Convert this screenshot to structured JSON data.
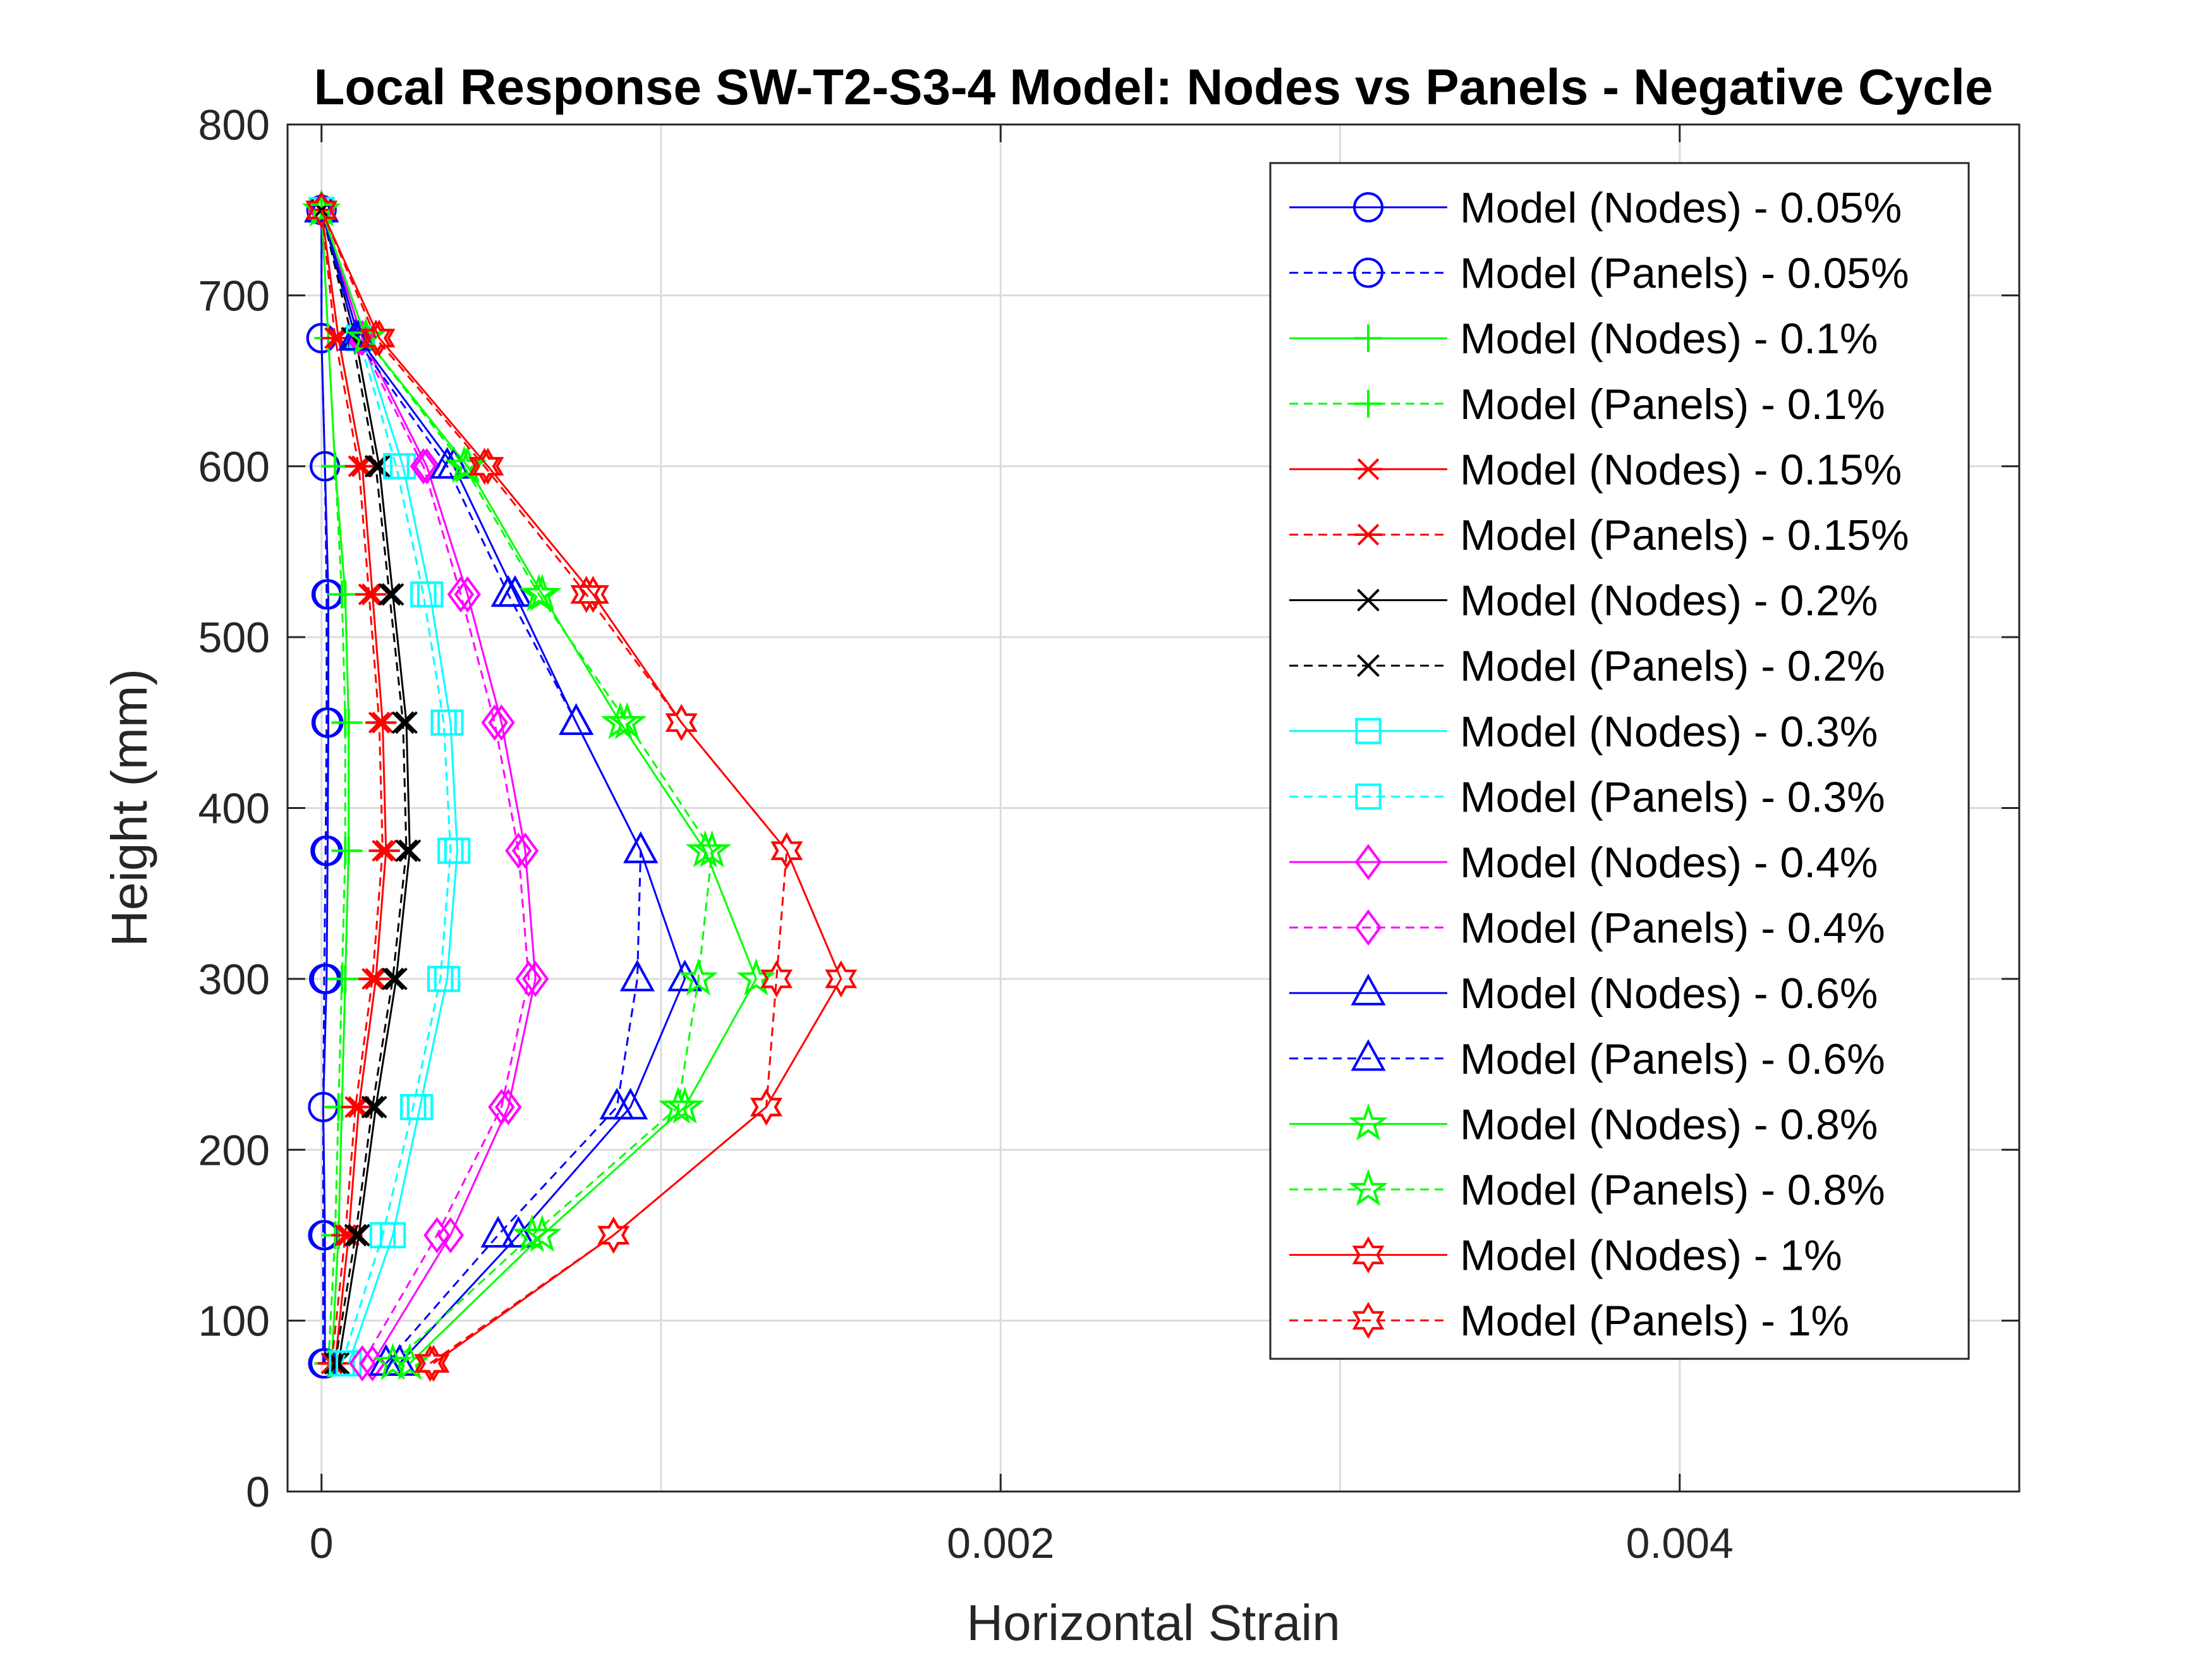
{
  "chart_data": {
    "type": "line",
    "title": "Local Response SW-T2-S3-4 Model: Nodes vs Panels - Negative Cycle",
    "xlabel": "Horizontal Strain",
    "ylabel": "Height (mm)",
    "xlim": [
      -0.0001,
      0.005
    ],
    "ylim": [
      0,
      800
    ],
    "xticks": [
      0,
      0.002,
      0.004
    ],
    "xtick_labels": [
      "0",
      "0.002",
      "0.004"
    ],
    "xgrid": [
      0,
      0.001,
      0.002,
      0.003,
      0.004
    ],
    "yticks": [
      0,
      100,
      200,
      300,
      400,
      500,
      600,
      700,
      800
    ],
    "ytick_labels": [
      "0",
      "100",
      "200",
      "300",
      "400",
      "500",
      "600",
      "700",
      "800"
    ],
    "grid": true,
    "legend_position": "top-right",
    "y": [
      75,
      150,
      225,
      300,
      375,
      450,
      525,
      600,
      675,
      750
    ],
    "series": [
      {
        "name": "Model (Nodes) - 0.05%",
        "color": "#0000ff",
        "line": "solid",
        "marker": "circle",
        "x": [
          1e-05,
          1e-05,
          5e-06,
          1.5e-05,
          1.8e-05,
          2e-05,
          2e-05,
          1e-05,
          0.0,
          0.0
        ]
      },
      {
        "name": "Model (Panels) - 0.05%",
        "color": "#0000ff",
        "line": "dashed",
        "marker": "circle",
        "x": [
          5e-06,
          5e-06,
          5e-06,
          8e-06,
          1.2e-05,
          1.5e-05,
          1.5e-05,
          1e-05,
          0.0,
          0.0
        ]
      },
      {
        "name": "Model (Nodes) - 0.1%",
        "color": "#00ff00",
        "line": "solid",
        "marker": "plus",
        "x": [
          3e-05,
          5e-05,
          6e-05,
          7e-05,
          8e-05,
          8e-05,
          7e-05,
          4e-05,
          2e-05,
          0.0
        ]
      },
      {
        "name": "Model (Panels) - 0.1%",
        "color": "#00ff00",
        "line": "dashed",
        "marker": "plus",
        "x": [
          2e-05,
          4e-05,
          5e-05,
          6e-05,
          7e-05,
          7e-05,
          6e-05,
          4e-05,
          2e-05,
          0.0
        ]
      },
      {
        "name": "Model (Nodes) - 0.15%",
        "color": "#ff0000",
        "line": "solid",
        "marker": "asterisk",
        "x": [
          4e-05,
          8e-05,
          0.00011,
          0.00016,
          0.00019,
          0.00018,
          0.00015,
          0.00012,
          5e-05,
          0.0
        ]
      },
      {
        "name": "Model (Panels) - 0.15%",
        "color": "#ff0000",
        "line": "dashed",
        "marker": "asterisk",
        "x": [
          3e-05,
          7e-05,
          0.0001,
          0.00015,
          0.00018,
          0.00017,
          0.00014,
          0.00011,
          4e-05,
          0.0
        ]
      },
      {
        "name": "Model (Nodes) - 0.2%",
        "color": "#000000",
        "line": "solid",
        "marker": "cross",
        "x": [
          5e-05,
          0.00011,
          0.00016,
          0.00022,
          0.00026,
          0.00025,
          0.00021,
          0.00017,
          0.0001,
          0.0
        ]
      },
      {
        "name": "Model (Panels) - 0.2%",
        "color": "#000000",
        "line": "dashed",
        "marker": "cross",
        "x": [
          4e-05,
          0.0001,
          0.00015,
          0.00021,
          0.00025,
          0.00024,
          0.0002,
          0.00016,
          9e-05,
          0.0
        ]
      },
      {
        "name": "Model (Nodes) - 0.3%",
        "color": "#00ffff",
        "line": "solid",
        "marker": "square",
        "x": [
          8e-05,
          0.00021,
          0.00029,
          0.00037,
          0.0004,
          0.00038,
          0.00032,
          0.00024,
          0.00012,
          0.0
        ]
      },
      {
        "name": "Model (Panels) - 0.3%",
        "color": "#00ffff",
        "line": "dashed",
        "marker": "square",
        "x": [
          6e-05,
          0.00018,
          0.00027,
          0.00035,
          0.00038,
          0.00036,
          0.0003,
          0.00022,
          0.00011,
          0.0
        ]
      },
      {
        "name": "Model (Nodes) - 0.4%",
        "color": "#ff00ff",
        "line": "solid",
        "marker": "diamond",
        "x": [
          0.00015,
          0.00038,
          0.00055,
          0.00063,
          0.0006,
          0.00053,
          0.00043,
          0.00031,
          0.00012,
          0.0
        ]
      },
      {
        "name": "Model (Panels) - 0.4%",
        "color": "#ff00ff",
        "line": "dashed",
        "marker": "diamond",
        "x": [
          0.00012,
          0.00034,
          0.00053,
          0.00061,
          0.00058,
          0.00051,
          0.00041,
          0.0003,
          0.00011,
          0.0
        ]
      },
      {
        "name": "Model (Nodes) - 0.6%",
        "color": "#0000ff",
        "line": "solid",
        "marker": "triangle",
        "x": [
          0.00023,
          0.00058,
          0.00091,
          0.00107,
          0.00094,
          0.00075,
          0.00057,
          0.00039,
          0.00011,
          0.0
        ]
      },
      {
        "name": "Model (Panels) - 0.6%",
        "color": "#0000ff",
        "line": "dashed",
        "marker": "triangle",
        "x": [
          0.00019,
          0.00052,
          0.00087,
          0.00093,
          0.00094,
          0.00075,
          0.00055,
          0.00037,
          0.0001,
          0.0
        ]
      },
      {
        "name": "Model (Nodes) - 0.8%",
        "color": "#00ff00",
        "line": "solid",
        "marker": "pentagram",
        "x": [
          0.00026,
          0.00065,
          0.00107,
          0.00128,
          0.00113,
          0.00088,
          0.00065,
          0.00043,
          0.00013,
          0.0
        ]
      },
      {
        "name": "Model (Panels) - 0.8%",
        "color": "#00ff00",
        "line": "dashed",
        "marker": "pentagram",
        "x": [
          0.00021,
          0.00062,
          0.00105,
          0.00111,
          0.00115,
          0.0009,
          0.00064,
          0.00042,
          0.00013,
          0.0
        ]
      },
      {
        "name": "Model (Nodes) - 1%",
        "color": "#ff0000",
        "line": "solid",
        "marker": "hexagram",
        "x": [
          0.00033,
          0.00086,
          0.00131,
          0.00153,
          0.00137,
          0.00106,
          0.0008,
          0.00049,
          0.00017,
          0.0
        ]
      },
      {
        "name": "Model (Panels) - 1%",
        "color": "#ff0000",
        "line": "dashed",
        "marker": "hexagram",
        "x": [
          0.00032,
          0.00086,
          0.00131,
          0.00134,
          0.00137,
          0.00106,
          0.00078,
          0.00048,
          0.00016,
          0.0
        ]
      }
    ]
  }
}
